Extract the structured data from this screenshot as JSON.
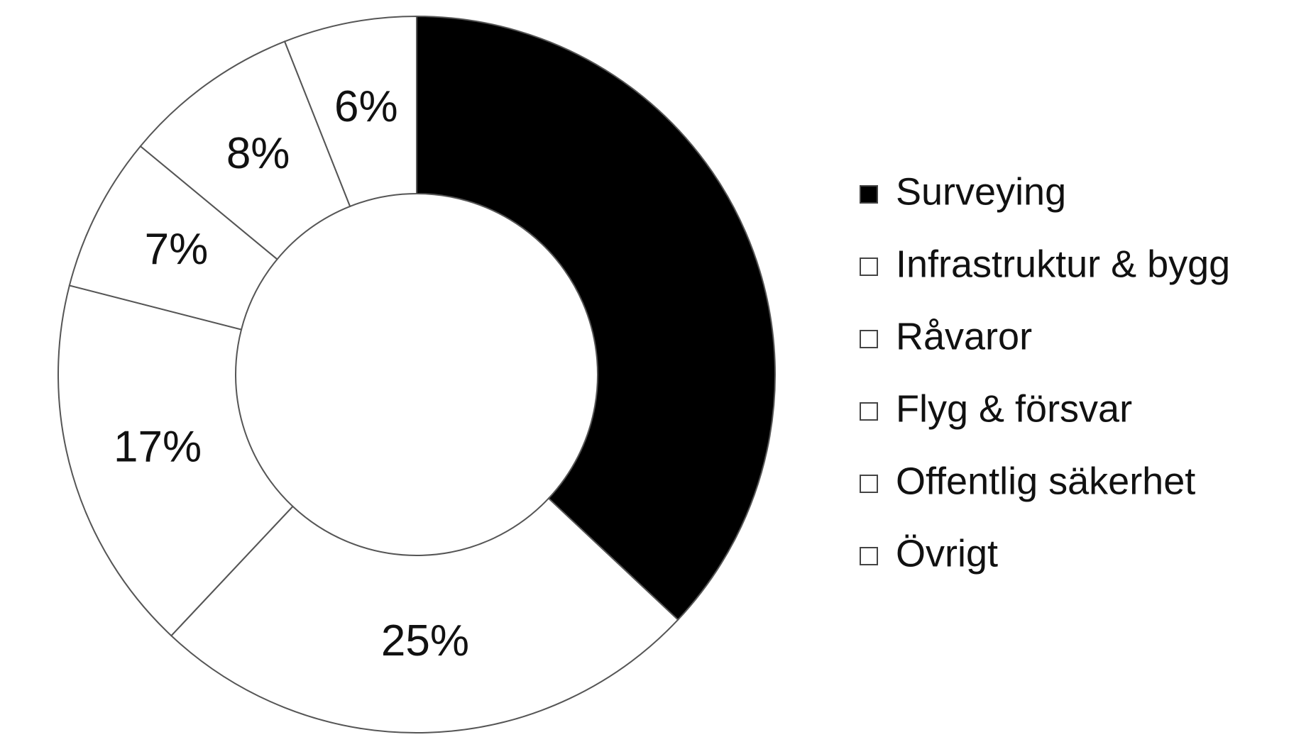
{
  "chart_data": {
    "type": "donut",
    "categories": [
      "Surveying",
      "Infrastruktur & bygg",
      "Råvaror",
      "Flyg & försvar",
      "Offentlig säkerhet",
      "Övrigt"
    ],
    "values": [
      37,
      25,
      17,
      7,
      8,
      6
    ],
    "value_labels": [
      null,
      "25%",
      "17%",
      "7%",
      "8%",
      "6%"
    ],
    "colors": [
      "#000000",
      "#ffffff",
      "#ffffff",
      "#ffffff",
      "#ffffff",
      "#ffffff"
    ],
    "legend": "right"
  }
}
